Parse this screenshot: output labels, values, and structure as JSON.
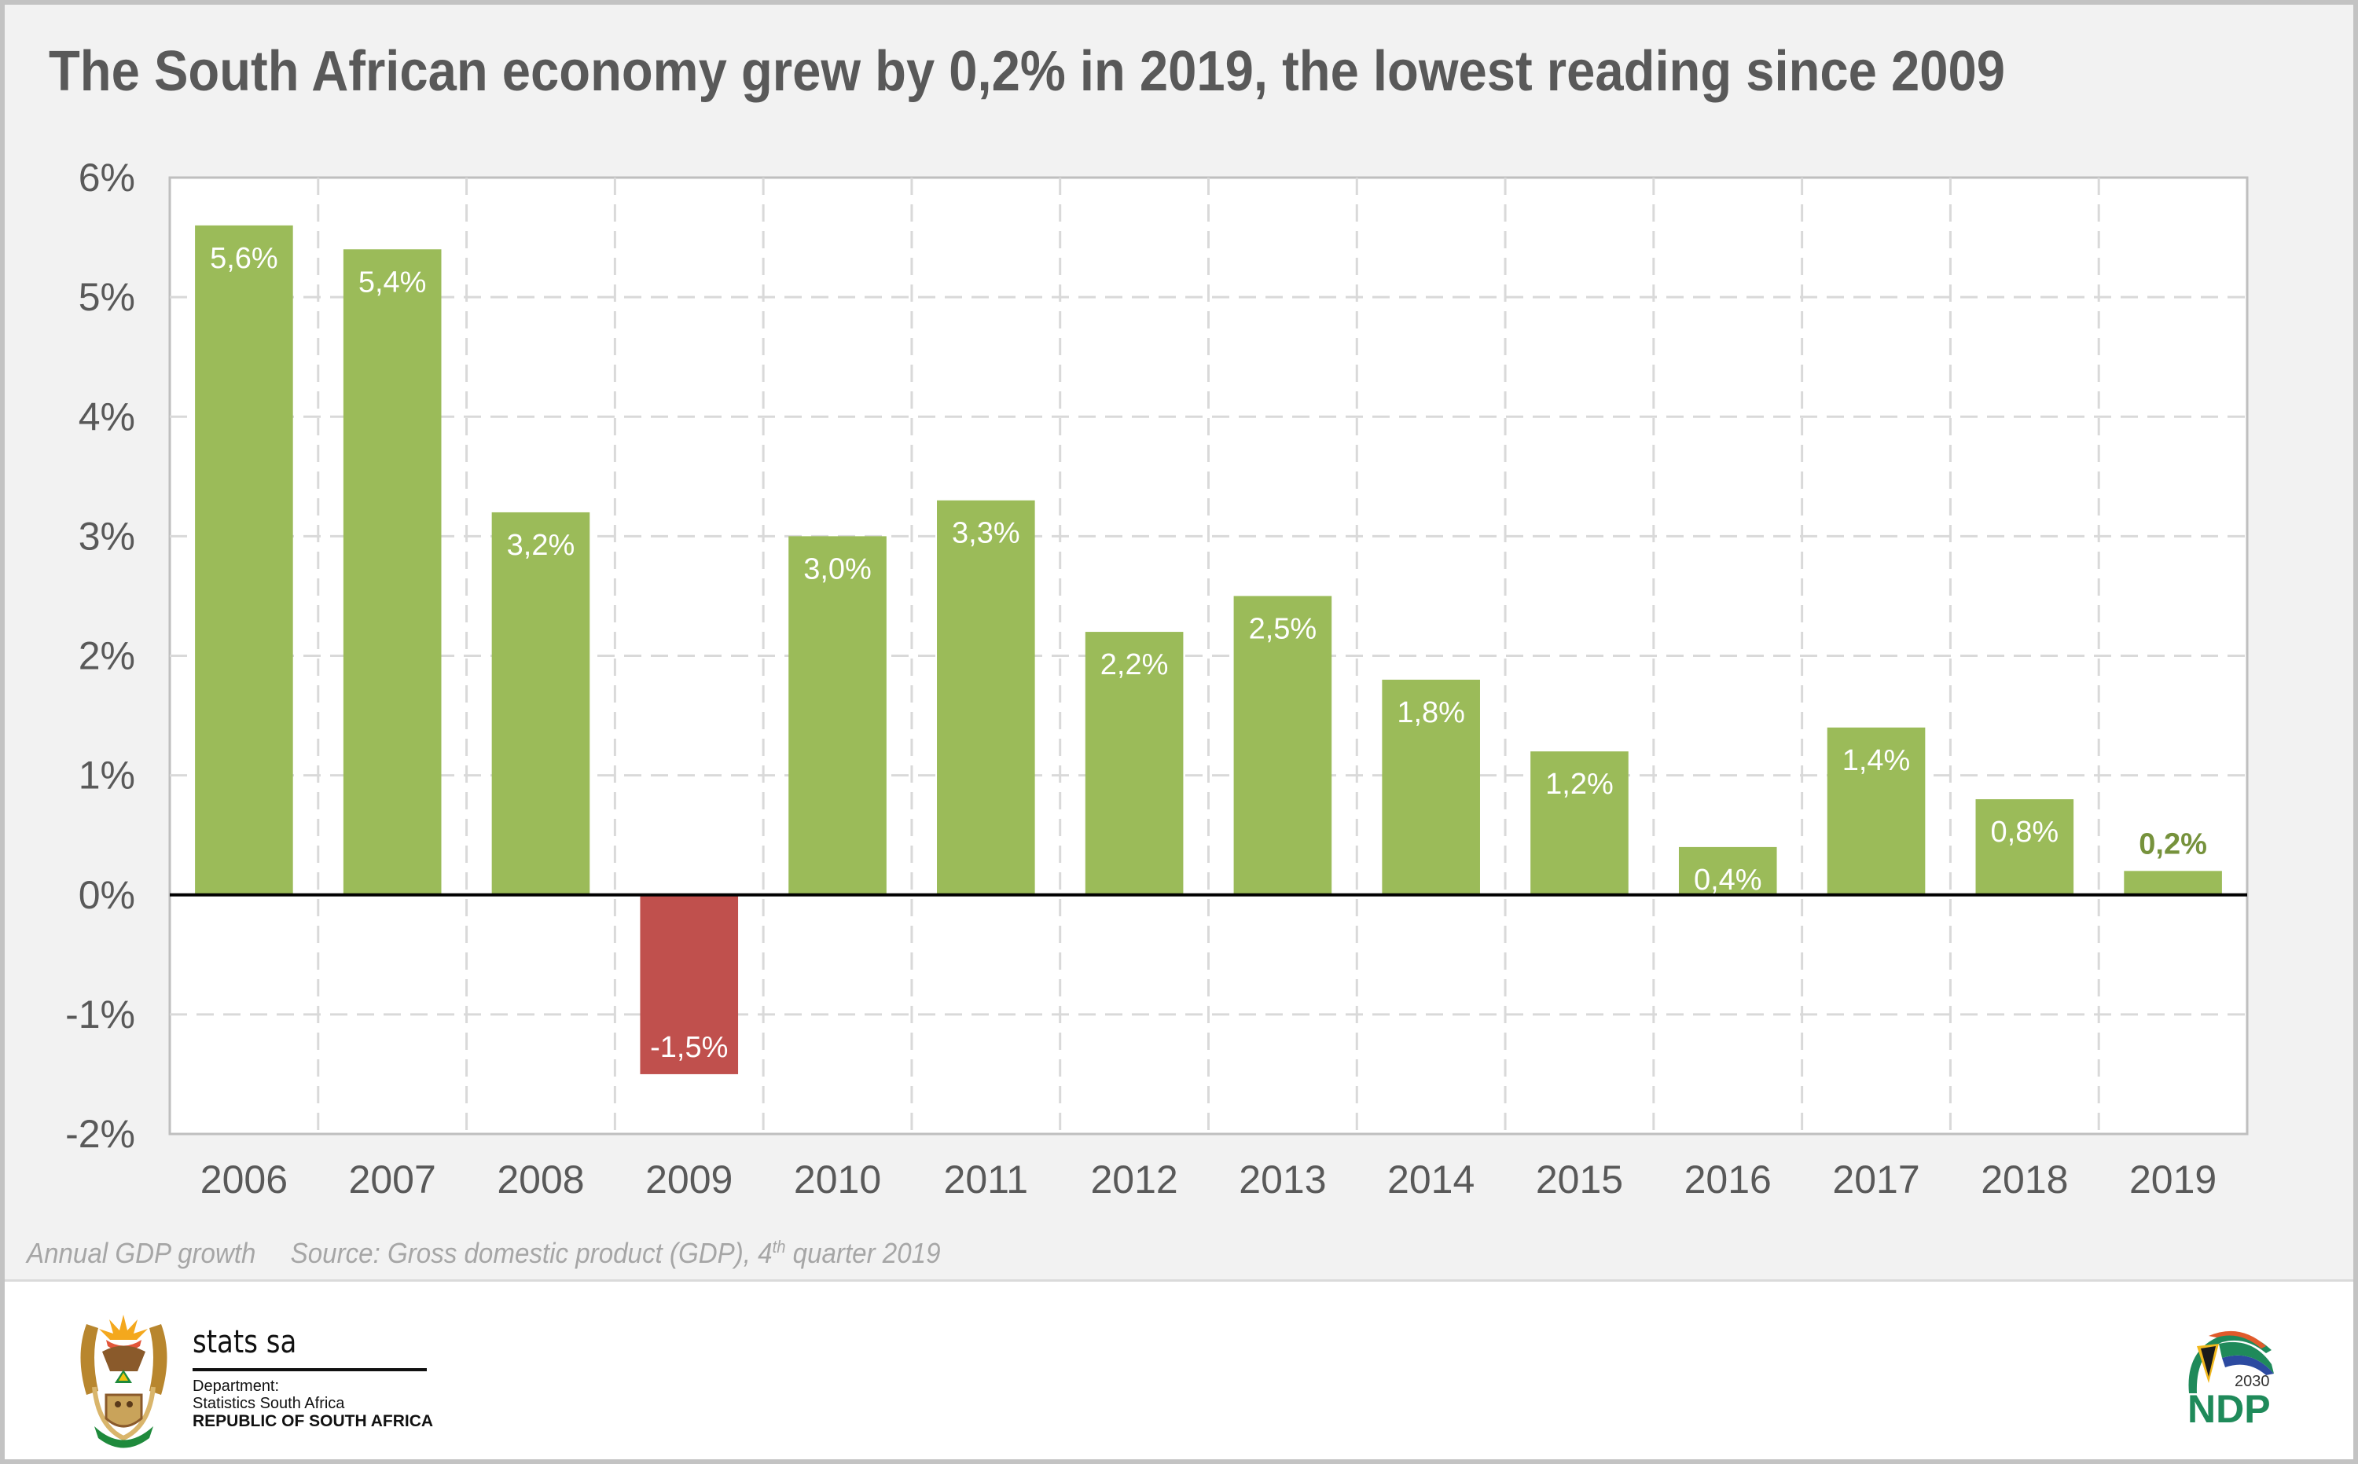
{
  "title": "The South African economy grew by 0,2% in 2019, the lowest reading since 2009",
  "footnote": {
    "label": "Annual GDP growth",
    "source_prefix": "Source: Gross domestic product (GDP), 4",
    "source_sup": "th",
    "source_suffix": " quarter 2019"
  },
  "logos": {
    "statssa": {
      "icon": "coat-of-arms-icon",
      "name": "stats sa",
      "dept_line1": "Department:",
      "dept_line2": "Statistics South Africa",
      "country": "REPUBLIC OF SOUTH AFRICA"
    },
    "ndp": {
      "icon": "ndp-2030-logo-icon",
      "year": "2030",
      "name": "NDP"
    }
  },
  "colors": {
    "positive_bar": "#9bbb59",
    "negative_bar": "#c0504d",
    "highlight_label": "#76923c",
    "text": "#595959",
    "grid": "#d9d9d9",
    "zero_line": "#000000"
  },
  "chart_data": {
    "type": "bar",
    "title": "The South African economy grew by 0,2% in 2019, the lowest reading since 2009",
    "xlabel": "",
    "ylabel": "",
    "categories": [
      "2006",
      "2007",
      "2008",
      "2009",
      "2010",
      "2011",
      "2012",
      "2013",
      "2014",
      "2015",
      "2016",
      "2017",
      "2018",
      "2019"
    ],
    "values": [
      5.6,
      5.4,
      3.2,
      -1.5,
      3.0,
      3.3,
      2.2,
      2.5,
      1.8,
      1.2,
      0.4,
      1.4,
      0.8,
      0.2
    ],
    "data_labels": [
      "5,6%",
      "5,4%",
      "3,2%",
      "-1,5%",
      "3,0%",
      "3,3%",
      "2,2%",
      "2,5%",
      "1,8%",
      "1,2%",
      "0,4%",
      "1,4%",
      "0,8%",
      "0,2%"
    ],
    "ylim": [
      -2,
      6
    ],
    "yticks": [
      6,
      5,
      4,
      3,
      2,
      1,
      0,
      -1,
      -2
    ],
    "ytick_labels": [
      "6%",
      "5%",
      "4%",
      "3%",
      "2%",
      "1%",
      "0%",
      "-1%",
      "-2%"
    ],
    "grid": true,
    "grid_style": "dashed",
    "legend": "none",
    "highlighted_category": "2019"
  }
}
